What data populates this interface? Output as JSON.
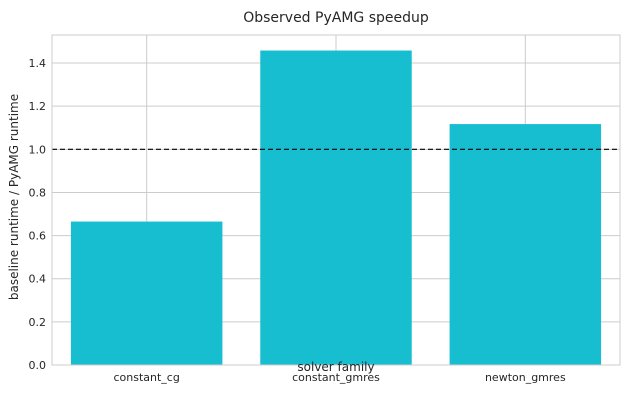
{
  "chart_data": {
    "type": "bar",
    "title": "Observed PyAMG speedup",
    "xlabel": "solver family",
    "ylabel": "baseline runtime / PyAMG runtime",
    "categories": [
      "constant_cg",
      "constant_gmres",
      "newton_gmres"
    ],
    "values": [
      0.665,
      1.458,
      1.117
    ],
    "ylim": [
      0,
      1.53
    ],
    "yticks": [
      0.0,
      0.2,
      0.4,
      0.6,
      0.8,
      1.0,
      1.2,
      1.4
    ],
    "ytick_labels": [
      "0.0",
      "0.2",
      "0.4",
      "0.6",
      "0.8",
      "1.0",
      "1.2",
      "1.4"
    ],
    "reference_line": 1.0,
    "grid": true,
    "bar_color": "#17becf",
    "grid_color": "#cccccc",
    "reference_line_color": "#000000"
  }
}
